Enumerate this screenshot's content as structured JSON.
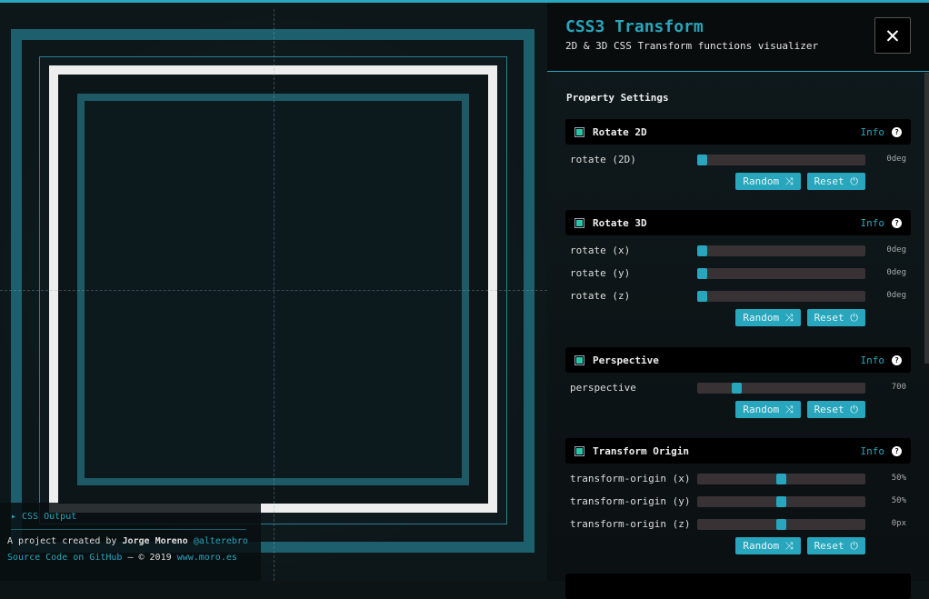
{
  "header": {
    "title": "CSS3 Transform",
    "subtitle": "2D & 3D CSS Transform functions visualizer",
    "close_icon": "close-icon"
  },
  "property_settings": "Property Settings",
  "colors": {
    "accent": "#27a6bd",
    "check": "#2bc4a8"
  },
  "sections": [
    {
      "title": "Rotate 2D",
      "info": "Info",
      "enabled": true,
      "rows": [
        {
          "label": "rotate (2D)",
          "value": "0deg",
          "fraction": 0
        }
      ]
    },
    {
      "title": "Rotate 3D",
      "info": "Info",
      "enabled": true,
      "rows": [
        {
          "label": "rotate (x)",
          "value": "0deg",
          "fraction": 0
        },
        {
          "label": "rotate (y)",
          "value": "0deg",
          "fraction": 0
        },
        {
          "label": "rotate (z)",
          "value": "0deg",
          "fraction": 0
        }
      ]
    },
    {
      "title": "Perspective",
      "info": "Info",
      "enabled": true,
      "rows": [
        {
          "label": "perspective",
          "value": "700",
          "fraction": 0.22
        }
      ],
      "hide_buttons": false
    },
    {
      "title": "Transform Origin",
      "info": "Info",
      "enabled": true,
      "rows": [
        {
          "label": "transform-origin (x)",
          "value": "50%",
          "fraction": 0.5
        },
        {
          "label": "transform-origin (y)",
          "value": "50%",
          "fraction": 0.5
        },
        {
          "label": "transform-origin (z)",
          "value": "0px",
          "fraction": 0.5
        }
      ]
    }
  ],
  "buttons": {
    "random": "Random ⤨",
    "reset": "Reset ⏻"
  },
  "footer": {
    "css_output": "▸ CSS Output",
    "credit": "A project created by",
    "author": "Jorge Moreno",
    "handle": "@alterebro",
    "source": "Source Code on GitHub",
    "copyright": " — © 2019 ",
    "site": "www.moro.es"
  }
}
